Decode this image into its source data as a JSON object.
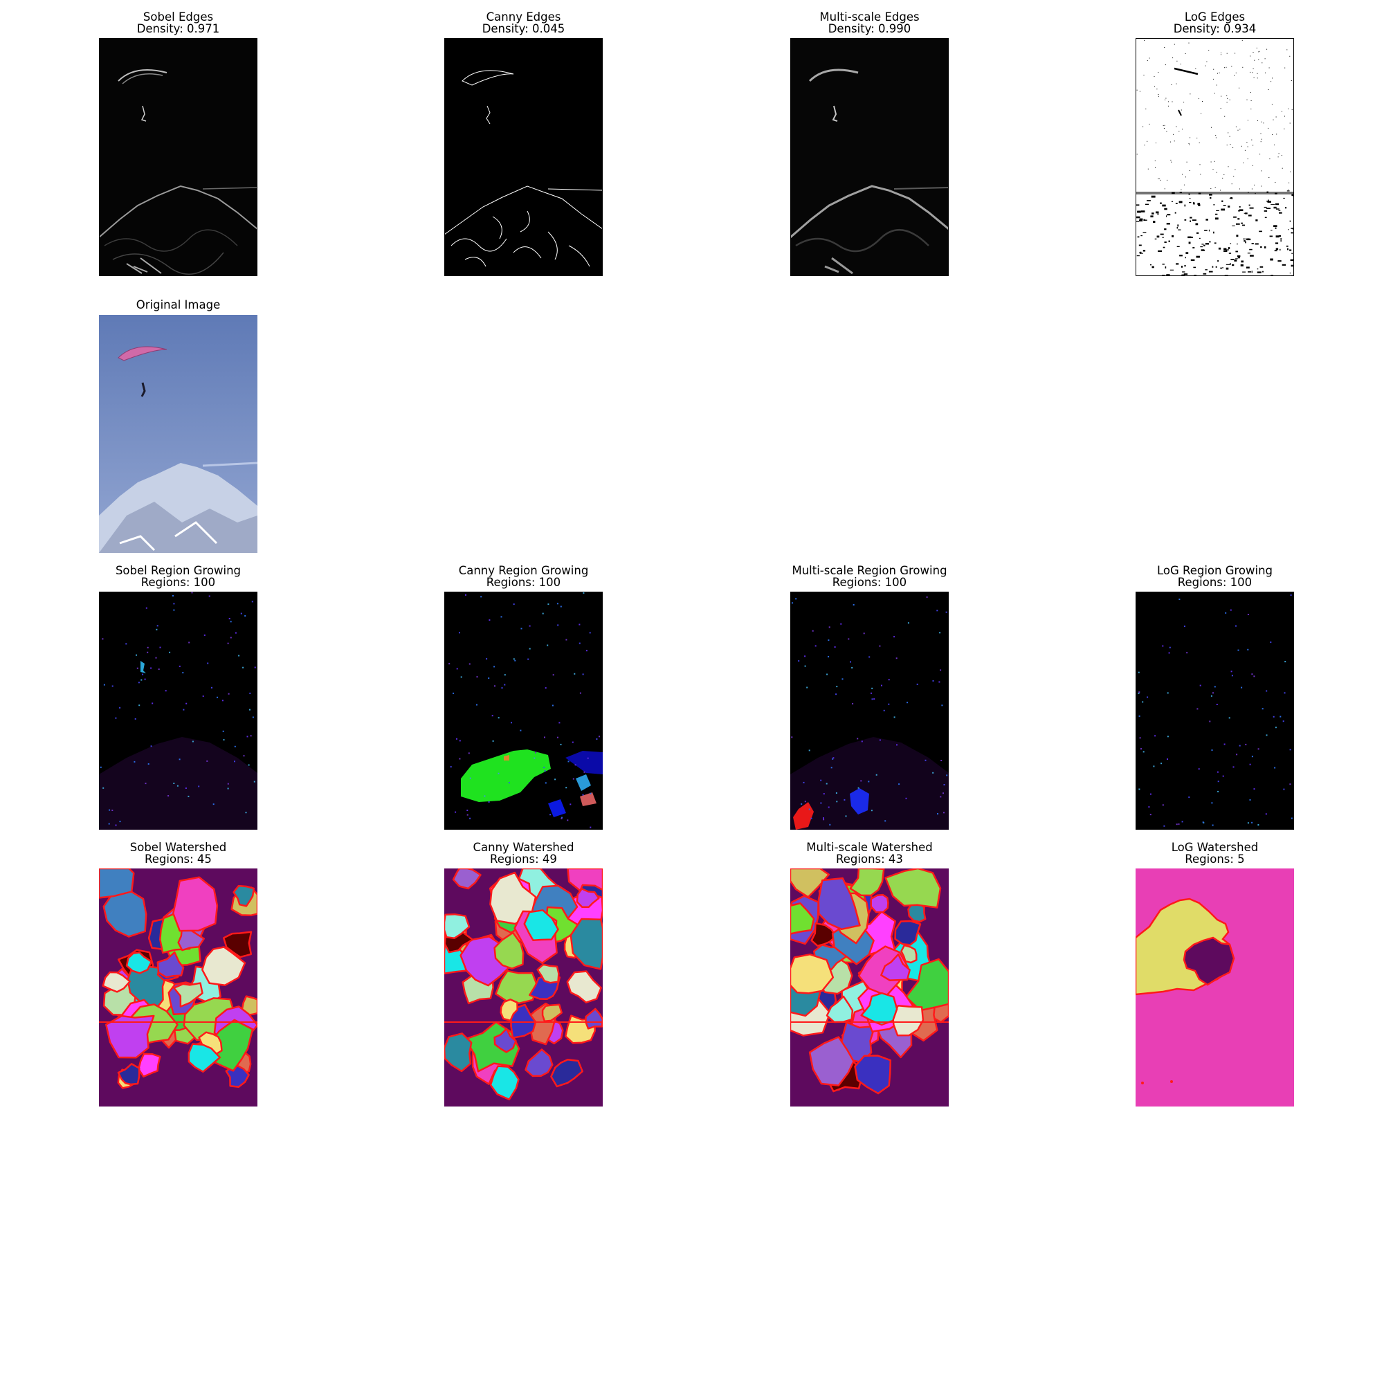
{
  "figure": {
    "rows": [
      {
        "row": "edges",
        "panels": [
          {
            "title": "Sobel Edges",
            "subtitle": "Density: 0.971",
            "kind": "edges-dark"
          },
          {
            "title": "Canny Edges",
            "subtitle": "Density: 0.045",
            "kind": "edges-canny"
          },
          {
            "title": "Multi-scale Edges",
            "subtitle": "Density: 0.990",
            "kind": "edges-dark"
          },
          {
            "title": "LoG Edges",
            "subtitle": "Density: 0.934",
            "kind": "edges-log"
          }
        ]
      },
      {
        "row": "original",
        "panels": [
          {
            "title": "Original Image",
            "subtitle": "",
            "kind": "photo"
          }
        ]
      },
      {
        "row": "region-growing",
        "panels": [
          {
            "title": "Sobel Region Growing",
            "subtitle": "Regions: 100",
            "kind": "region-sobel"
          },
          {
            "title": "Canny Region Growing",
            "subtitle": "Regions: 100",
            "kind": "region-canny"
          },
          {
            "title": "Multi-scale Region Growing",
            "subtitle": "Regions: 100",
            "kind": "region-multi"
          },
          {
            "title": "LoG Region Growing",
            "subtitle": "Regions: 100",
            "kind": "region-log"
          }
        ]
      },
      {
        "row": "watershed",
        "panels": [
          {
            "title": "Sobel Watershed",
            "subtitle": "Regions: 45",
            "kind": "watershed"
          },
          {
            "title": "Canny Watershed",
            "subtitle": "Regions: 49",
            "kind": "watershed"
          },
          {
            "title": "Multi-scale Watershed",
            "subtitle": "Regions: 43",
            "kind": "watershed"
          },
          {
            "title": "LoG Watershed",
            "subtitle": "Regions: 5",
            "kind": "watershed-log"
          }
        ]
      }
    ]
  },
  "colors": {
    "sky": "#7a90c4",
    "mountain": "#c9d3e6",
    "watershed_base": "#5e0a5e",
    "watershed_boundary": "#ff1a1a",
    "log_pink": "#e83fb5",
    "log_yellow": "#e0dc68"
  }
}
